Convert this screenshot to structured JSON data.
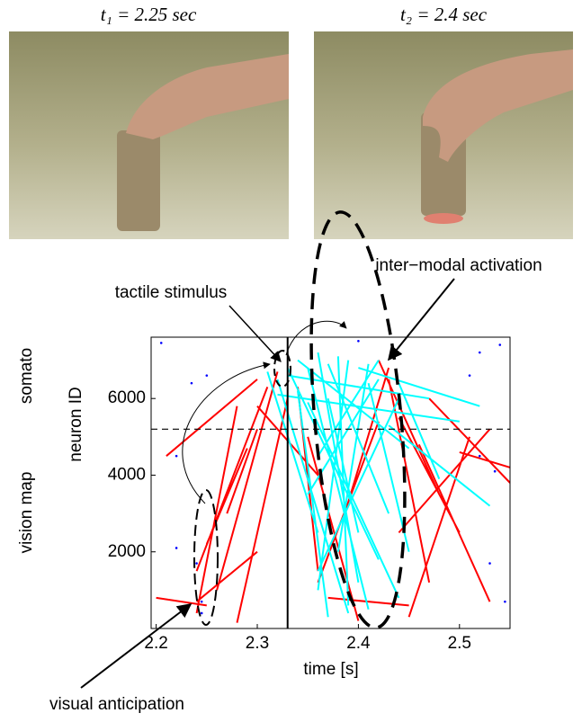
{
  "images": [
    {
      "label": "t₁ = 2.25 sec"
    },
    {
      "label": "t₂ = 2.4 sec"
    }
  ],
  "chart_data": {
    "type": "line",
    "xlabel": "time [s]",
    "ylabel": "neuron ID",
    "ylabel_lower": "vision map",
    "ylabel_upper": "somato",
    "annotations": [
      "tactile stimulus",
      "inter−modal activation",
      "visual anticipation"
    ],
    "xlim": [
      2.195,
      2.55
    ],
    "ylim": [
      0,
      7600
    ],
    "xticks": [
      2.2,
      2.3,
      2.4,
      2.5
    ],
    "yticks": [
      2000,
      4000,
      6000
    ],
    "hline": 5200,
    "vline": 2.33,
    "series": [
      {
        "color": "#ff0000",
        "x": [
          2.2,
          2.25,
          null,
          2.21,
          2.3,
          null,
          2.24,
          2.28,
          null,
          2.24,
          2.31,
          null,
          2.25,
          2.29,
          null,
          2.26,
          2.32,
          null,
          2.27,
          2.3,
          null,
          2.24,
          2.3,
          null,
          2.28,
          2.33,
          null,
          2.34,
          2.36,
          null,
          2.35,
          2.4,
          null,
          2.36,
          2.42,
          null,
          2.43,
          2.47,
          null,
          2.44,
          2.5,
          null,
          2.45,
          2.51,
          null,
          2.46,
          2.53,
          null,
          2.42,
          2.48,
          null,
          2.47,
          2.55,
          null,
          2.5,
          2.55,
          null,
          2.37,
          2.45,
          null,
          2.44,
          2.53,
          null,
          2.39,
          2.43,
          null,
          2.3,
          2.36
        ],
        "y": [
          800,
          600,
          null,
          4500,
          6500,
          null,
          400,
          5800,
          null,
          1500,
          6300,
          null,
          2200,
          4700,
          null,
          1000,
          6700,
          null,
          3000,
          5200,
          null,
          700,
          2000,
          null,
          150,
          6000,
          null,
          6300,
          1500,
          null,
          5000,
          200,
          null,
          1200,
          5400,
          null,
          6500,
          1200,
          null,
          5500,
          2500,
          null,
          300,
          5000,
          null,
          4800,
          700,
          null,
          7000,
          3500,
          null,
          6000,
          3800,
          null,
          4600,
          4200,
          null,
          800,
          600,
          null,
          2500,
          5200,
          null,
          3300,
          6800,
          null,
          5800,
          4000
        ]
      },
      {
        "color": "#00ffff",
        "x": [
          2.31,
          2.36,
          null,
          2.32,
          2.39,
          null,
          2.33,
          2.42,
          null,
          2.34,
          2.37,
          null,
          2.34,
          2.45,
          null,
          2.35,
          2.41,
          null,
          2.36,
          2.4,
          null,
          2.37,
          2.43,
          null,
          2.38,
          2.39,
          null,
          2.33,
          2.47,
          null,
          2.35,
          2.44,
          null,
          2.36,
          2.42,
          null,
          2.38,
          2.41,
          null,
          2.4,
          2.52,
          null,
          2.43,
          2.53,
          null,
          2.44,
          2.48,
          null,
          2.36,
          2.44,
          null,
          2.37,
          2.4,
          null,
          2.39,
          2.36,
          null,
          2.35,
          2.42,
          null,
          2.41,
          2.45,
          null,
          2.32,
          2.5
        ],
        "y": [
          6700,
          2500,
          null,
          6500,
          400,
          null,
          6800,
          1800,
          null,
          6200,
          300,
          null,
          7000,
          4700,
          null,
          6800,
          500,
          null,
          7200,
          1200,
          null,
          6900,
          3000,
          null,
          7100,
          600,
          null,
          6600,
          6000,
          null,
          5900,
          800,
          null,
          4500,
          7000,
          null,
          2000,
          6900,
          null,
          6800,
          5800,
          null,
          5300,
          3200,
          null,
          6400,
          3900,
          null,
          1500,
          6000,
          null,
          6000,
          2500,
          null,
          7000,
          1000,
          null,
          3500,
          6500,
          null,
          6400,
          2000,
          null,
          6100,
          5400
        ]
      }
    ],
    "points": {
      "color": "#0000ff",
      "x": [
        2.205,
        2.22,
        2.235,
        2.25,
        2.22,
        2.245,
        2.245,
        2.24,
        2.52,
        2.54,
        2.535,
        2.53,
        2.545,
        2.51,
        2.52,
        2.4
      ],
      "y": [
        7450,
        2100,
        6400,
        6600,
        4500,
        400,
        700,
        1700,
        7200,
        7400,
        4100,
        1700,
        700,
        6600,
        4500,
        7500
      ]
    }
  }
}
